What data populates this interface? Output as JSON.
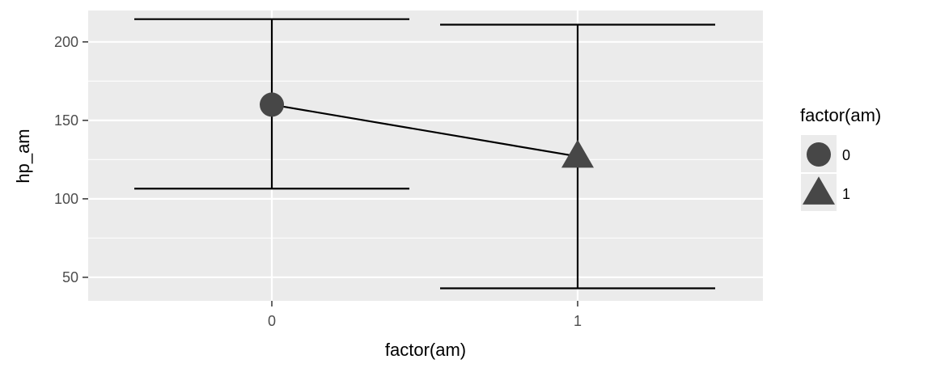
{
  "chart_data": {
    "type": "scatter",
    "title": "",
    "xlabel": "factor(am)",
    "ylabel": "hp_am",
    "categories": [
      "0",
      "1"
    ],
    "ylim": [
      35,
      220
    ],
    "yticks": [
      50,
      100,
      150,
      200
    ],
    "grid": true,
    "legend": {
      "title": "factor(am)",
      "position": "right",
      "entries": [
        {
          "label": "0",
          "shape": "circle"
        },
        {
          "label": "1",
          "shape": "triangle"
        }
      ]
    },
    "points": [
      {
        "category": "0",
        "mean": 160,
        "lower": 106.5,
        "upper": 214.5,
        "shape": "circle"
      },
      {
        "category": "1",
        "mean": 127,
        "lower": 43,
        "upper": 211,
        "shape": "triangle"
      }
    ],
    "colors": {
      "panel": "#ebebeb",
      "grid": "#ffffff",
      "point": "#474747",
      "line": "#000000"
    }
  }
}
